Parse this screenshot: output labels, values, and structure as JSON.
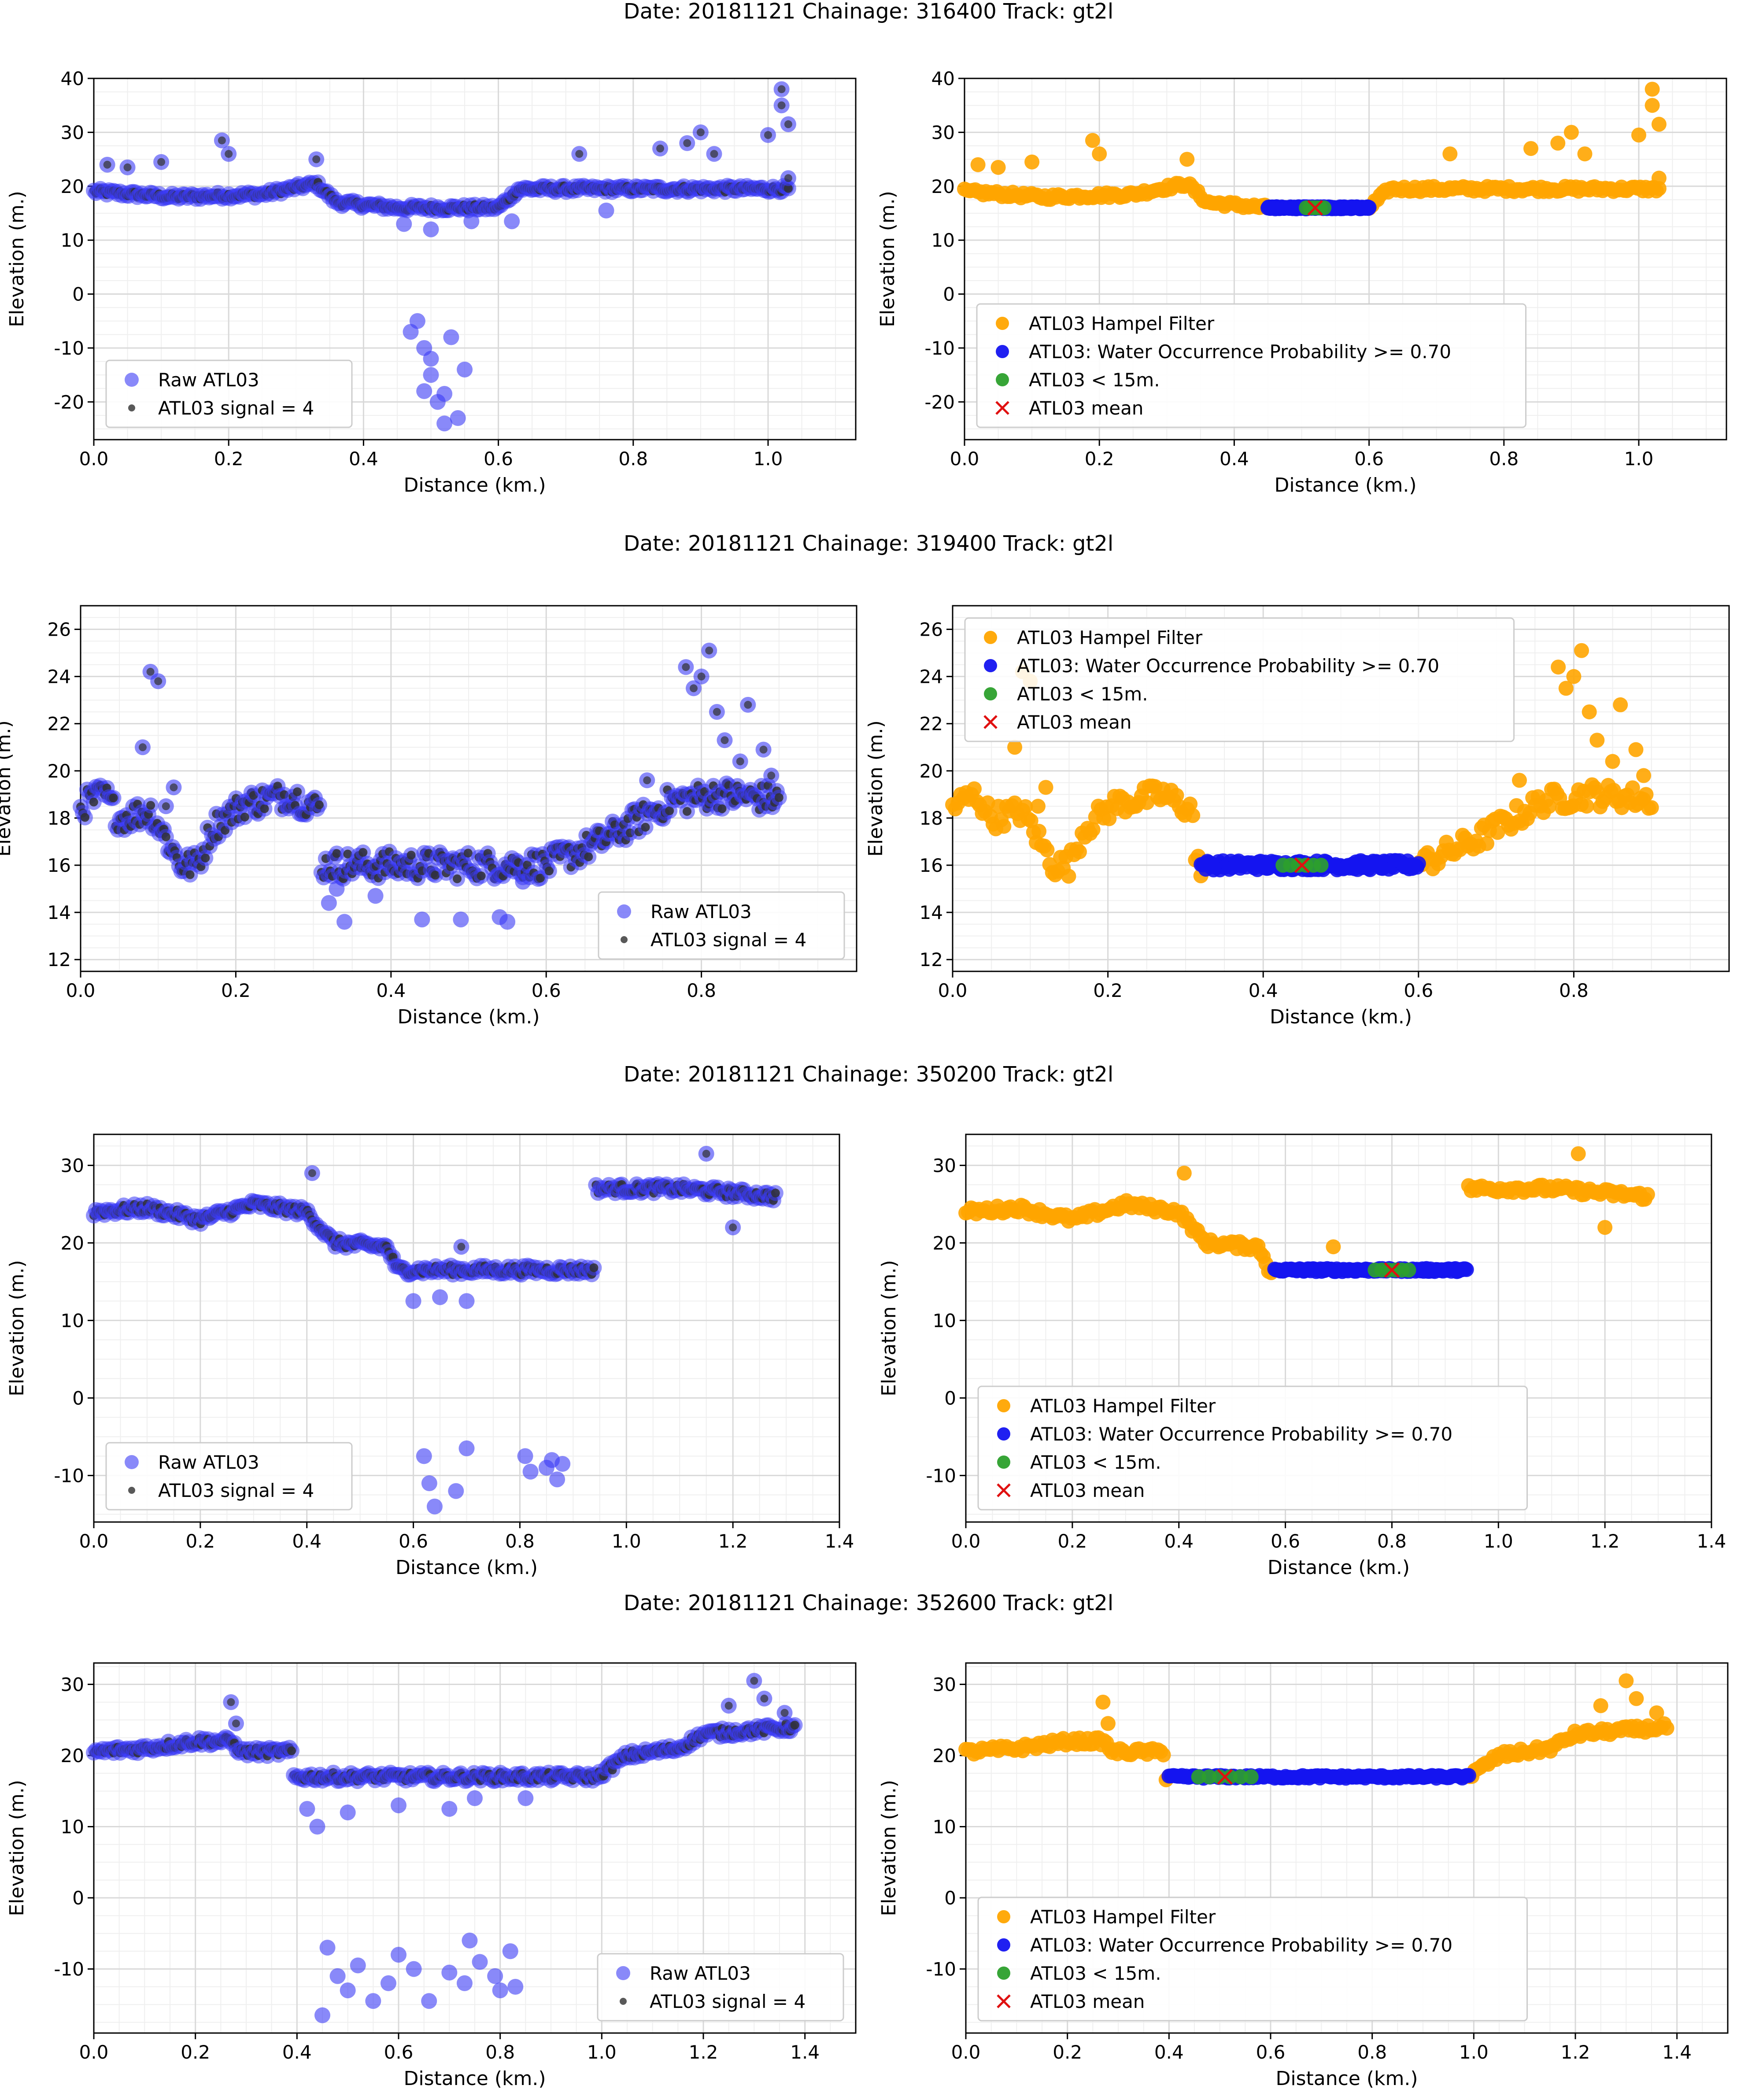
{
  "colors": {
    "raw": "#3a3af5",
    "signal": "#303030",
    "hampel": "#ffa500",
    "water": "#1414f0",
    "lt15": "#2ca02c",
    "mean": "#e01010"
  },
  "chart_data": [
    {
      "type": "scatter",
      "title": "Date: 20181121 Chainage: 316400 Track: gt2l",
      "xlabel": "Distance (km.)",
      "ylabel": "Elevation (m.)",
      "xlim": [
        0.0,
        1.13
      ],
      "ylim": [
        -27,
        40
      ],
      "xticks": [
        "0.0",
        "0.2",
        "0.4",
        "0.6",
        "0.8",
        "1.0"
      ],
      "yticks": [
        "40",
        "30",
        "20",
        "10",
        "0",
        "-10",
        "-20"
      ],
      "legend_left": [
        "Raw ATL03",
        "ATL03 signal = 4"
      ],
      "legend_left_position": "lower-left",
      "legend_right": [
        "ATL03 Hampel Filter",
        "ATL03: Water Occurrence Probability >= 0.70",
        "ATL03 < 15m.",
        "ATL03 mean"
      ],
      "legend_right_position": "lower-left",
      "water_range": [
        0.45,
        0.6
      ],
      "water_level": 16,
      "mean": [
        0.52,
        16
      ],
      "segments": [
        [
          0.0,
          19
        ],
        [
          0.12,
          18
        ],
        [
          0.25,
          18.5
        ],
        [
          0.33,
          20.5
        ],
        [
          0.36,
          17
        ],
        [
          0.45,
          16
        ],
        [
          0.6,
          16
        ],
        [
          0.63,
          19.5
        ],
        [
          1.03,
          19.5
        ]
      ],
      "outliers": [
        [
          0.02,
          24
        ],
        [
          0.05,
          23.5
        ],
        [
          0.1,
          24.5
        ],
        [
          0.19,
          28.5
        ],
        [
          0.2,
          26
        ],
        [
          0.33,
          25
        ],
        [
          0.72,
          26
        ],
        [
          0.76,
          15.5
        ],
        [
          0.84,
          27
        ],
        [
          0.88,
          28
        ],
        [
          0.9,
          30
        ],
        [
          0.92,
          26
        ],
        [
          1.0,
          29.5
        ],
        [
          1.02,
          38
        ],
        [
          1.02,
          35
        ],
        [
          1.03,
          31.5
        ],
        [
          1.03,
          21.5
        ],
        [
          0.48,
          -5
        ],
        [
          0.49,
          -10
        ],
        [
          0.5,
          -15
        ],
        [
          0.51,
          -20
        ],
        [
          0.52,
          -24
        ],
        [
          0.53,
          -8
        ],
        [
          0.5,
          -12
        ],
        [
          0.49,
          -18
        ],
        [
          0.54,
          -23
        ],
        [
          0.55,
          -14
        ],
        [
          0.47,
          -7
        ],
        [
          0.52,
          -18.5
        ],
        [
          0.46,
          13
        ],
        [
          0.5,
          12
        ],
        [
          0.56,
          13.5
        ],
        [
          0.62,
          13.5
        ]
      ]
    },
    {
      "type": "scatter",
      "title": "Date: 20181121 Chainage: 319400 Track: gt2l",
      "xlabel": "Distance (km.)",
      "ylabel": "Elevation (m.)",
      "xlim": [
        0.0,
        1.0
      ],
      "ylim": [
        11.5,
        27
      ],
      "xticks": [
        "0.0",
        "0.2",
        "0.4",
        "0.6",
        "0.8"
      ],
      "yticks": [
        "26",
        "24",
        "22",
        "20",
        "18",
        "16",
        "14",
        "12"
      ],
      "legend_left": [
        "Raw ATL03",
        "ATL03 signal = 4"
      ],
      "legend_left_position": "lower-right",
      "legend_right": [
        "ATL03 Hampel Filter",
        "ATL03: Water Occurrence Probability >= 0.70",
        "ATL03 < 15m.",
        "ATL03 mean"
      ],
      "legend_right_position": "upper-left",
      "water_range": [
        0.32,
        0.6
      ],
      "water_level": 16,
      "mean": [
        0.45,
        16
      ],
      "segments": [
        [
          0.0,
          18.5
        ],
        [
          0.03,
          19
        ],
        [
          0.05,
          18
        ],
        [
          0.09,
          18.3
        ],
        [
          0.13,
          16
        ],
        [
          0.15,
          16
        ],
        [
          0.17,
          17.6
        ],
        [
          0.21,
          18.6
        ],
        [
          0.27,
          19
        ],
        [
          0.31,
          18.3
        ],
        [
          0.31,
          16
        ],
        [
          0.6,
          16
        ],
        [
          0.67,
          17
        ],
        [
          0.76,
          18.7
        ],
        [
          0.82,
          19
        ],
        [
          0.9,
          18.8
        ]
      ],
      "outliers": [
        [
          0.08,
          21
        ],
        [
          0.09,
          24.2
        ],
        [
          0.1,
          23.8
        ],
        [
          0.12,
          19.3
        ],
        [
          0.11,
          18.5
        ],
        [
          0.78,
          24.4
        ],
        [
          0.79,
          23.5
        ],
        [
          0.8,
          24
        ],
        [
          0.81,
          25.1
        ],
        [
          0.82,
          22.5
        ],
        [
          0.83,
          21.3
        ],
        [
          0.85,
          20.4
        ],
        [
          0.86,
          22.8
        ],
        [
          0.88,
          20.9
        ],
        [
          0.89,
          19.8
        ],
        [
          0.73,
          19.6
        ],
        [
          0.33,
          15
        ],
        [
          0.34,
          13.6
        ],
        [
          0.32,
          14.4
        ],
        [
          0.38,
          14.7
        ],
        [
          0.44,
          13.7
        ],
        [
          0.49,
          13.7
        ],
        [
          0.54,
          13.8
        ],
        [
          0.55,
          13.6
        ],
        [
          0.57,
          15.3
        ]
      ]
    },
    {
      "type": "scatter",
      "title": "Date: 20181121 Chainage: 350200 Track: gt2l",
      "xlabel": "Distance (km.)",
      "ylabel": "Elevation (m.)",
      "xlim": [
        0.0,
        1.4
      ],
      "ylim": [
        -16,
        34
      ],
      "xticks": [
        "0.0",
        "0.2",
        "0.4",
        "0.6",
        "0.8",
        "1.0",
        "1.2",
        "1.4"
      ],
      "yticks": [
        "30",
        "20",
        "10",
        "0",
        "-10"
      ],
      "legend_left": [
        "Raw ATL03",
        "ATL03 signal = 4"
      ],
      "legend_left_position": "lower-left",
      "legend_right": [
        "ATL03 Hampel Filter",
        "ATL03: Water Occurrence Probability >= 0.70",
        "ATL03 < 15m.",
        "ATL03 mean"
      ],
      "legend_right_position": "lower-left",
      "water_range": [
        0.58,
        0.94
      ],
      "water_level": 16.5,
      "mean": [
        0.8,
        16.5
      ],
      "segments": [
        [
          0.0,
          24
        ],
        [
          0.1,
          24.5
        ],
        [
          0.2,
          23
        ],
        [
          0.3,
          25
        ],
        [
          0.4,
          24
        ],
        [
          0.45,
          20
        ],
        [
          0.55,
          19.5
        ],
        [
          0.57,
          16.5
        ],
        [
          0.94,
          16.5
        ],
        [
          0.93,
          27
        ],
        [
          1.1,
          27
        ],
        [
          1.28,
          26
        ]
      ],
      "outliers": [
        [
          0.6,
          12.5
        ],
        [
          0.65,
          13
        ],
        [
          0.7,
          12.5
        ],
        [
          0.69,
          19.5
        ],
        [
          0.62,
          -7.5
        ],
        [
          0.63,
          -11
        ],
        [
          0.64,
          -14
        ],
        [
          0.68,
          -12
        ],
        [
          0.7,
          -6.5
        ],
        [
          0.81,
          -7.5
        ],
        [
          0.82,
          -9.5
        ],
        [
          0.85,
          -9
        ],
        [
          0.86,
          -8
        ],
        [
          0.87,
          -10.5
        ],
        [
          0.88,
          -8.5
        ],
        [
          0.41,
          29
        ],
        [
          1.15,
          31.5
        ],
        [
          1.2,
          22
        ]
      ]
    },
    {
      "type": "scatter",
      "title": "Date: 20181121 Chainage: 352600 Track: gt2l",
      "xlabel": "Distance (km.)",
      "ylabel": "Elevation (m.)",
      "xlim": [
        0.0,
        1.5
      ],
      "ylim": [
        -19,
        33
      ],
      "xticks": [
        "0.0",
        "0.2",
        "0.4",
        "0.6",
        "0.8",
        "1.0",
        "1.2",
        "1.4"
      ],
      "yticks": [
        "30",
        "20",
        "10",
        "0",
        "-10"
      ],
      "legend_left": [
        "Raw ATL03",
        "ATL03 signal = 4"
      ],
      "legend_left_position": "lower-right",
      "legend_right": [
        "ATL03 Hampel Filter",
        "ATL03: Water Occurrence Probability >= 0.70",
        "ATL03 < 15m.",
        "ATL03 mean"
      ],
      "legend_right_position": "lower-left",
      "water_range": [
        0.4,
        0.99
      ],
      "water_level": 17,
      "mean": [
        0.51,
        17
      ],
      "segments": [
        [
          0.0,
          20.5
        ],
        [
          0.1,
          21
        ],
        [
          0.2,
          22
        ],
        [
          0.27,
          22
        ],
        [
          0.29,
          20.5
        ],
        [
          0.39,
          20.5
        ],
        [
          0.39,
          17
        ],
        [
          0.99,
          17
        ],
        [
          1.05,
          20
        ],
        [
          1.15,
          21
        ],
        [
          1.2,
          23
        ],
        [
          1.38,
          24
        ]
      ],
      "outliers": [
        [
          0.27,
          27.5
        ],
        [
          0.28,
          24.5
        ],
        [
          1.25,
          27
        ],
        [
          1.3,
          30.5
        ],
        [
          1.32,
          28
        ],
        [
          1.36,
          26
        ],
        [
          0.42,
          12.5
        ],
        [
          0.44,
          10
        ],
        [
          0.5,
          12
        ],
        [
          0.6,
          13
        ],
        [
          0.7,
          12.5
        ],
        [
          0.75,
          14
        ],
        [
          0.85,
          14
        ],
        [
          0.45,
          -16.5
        ],
        [
          0.46,
          -7
        ],
        [
          0.48,
          -11
        ],
        [
          0.5,
          -13
        ],
        [
          0.52,
          -9.5
        ],
        [
          0.55,
          -14.5
        ],
        [
          0.58,
          -12
        ],
        [
          0.6,
          -8
        ],
        [
          0.63,
          -10
        ],
        [
          0.66,
          -14.5
        ],
        [
          0.7,
          -10.5
        ],
        [
          0.73,
          -12
        ],
        [
          0.74,
          -6
        ],
        [
          0.76,
          -9
        ],
        [
          0.79,
          -11
        ],
        [
          0.8,
          -13
        ],
        [
          0.82,
          -7.5
        ],
        [
          0.83,
          -12.5
        ]
      ]
    }
  ]
}
